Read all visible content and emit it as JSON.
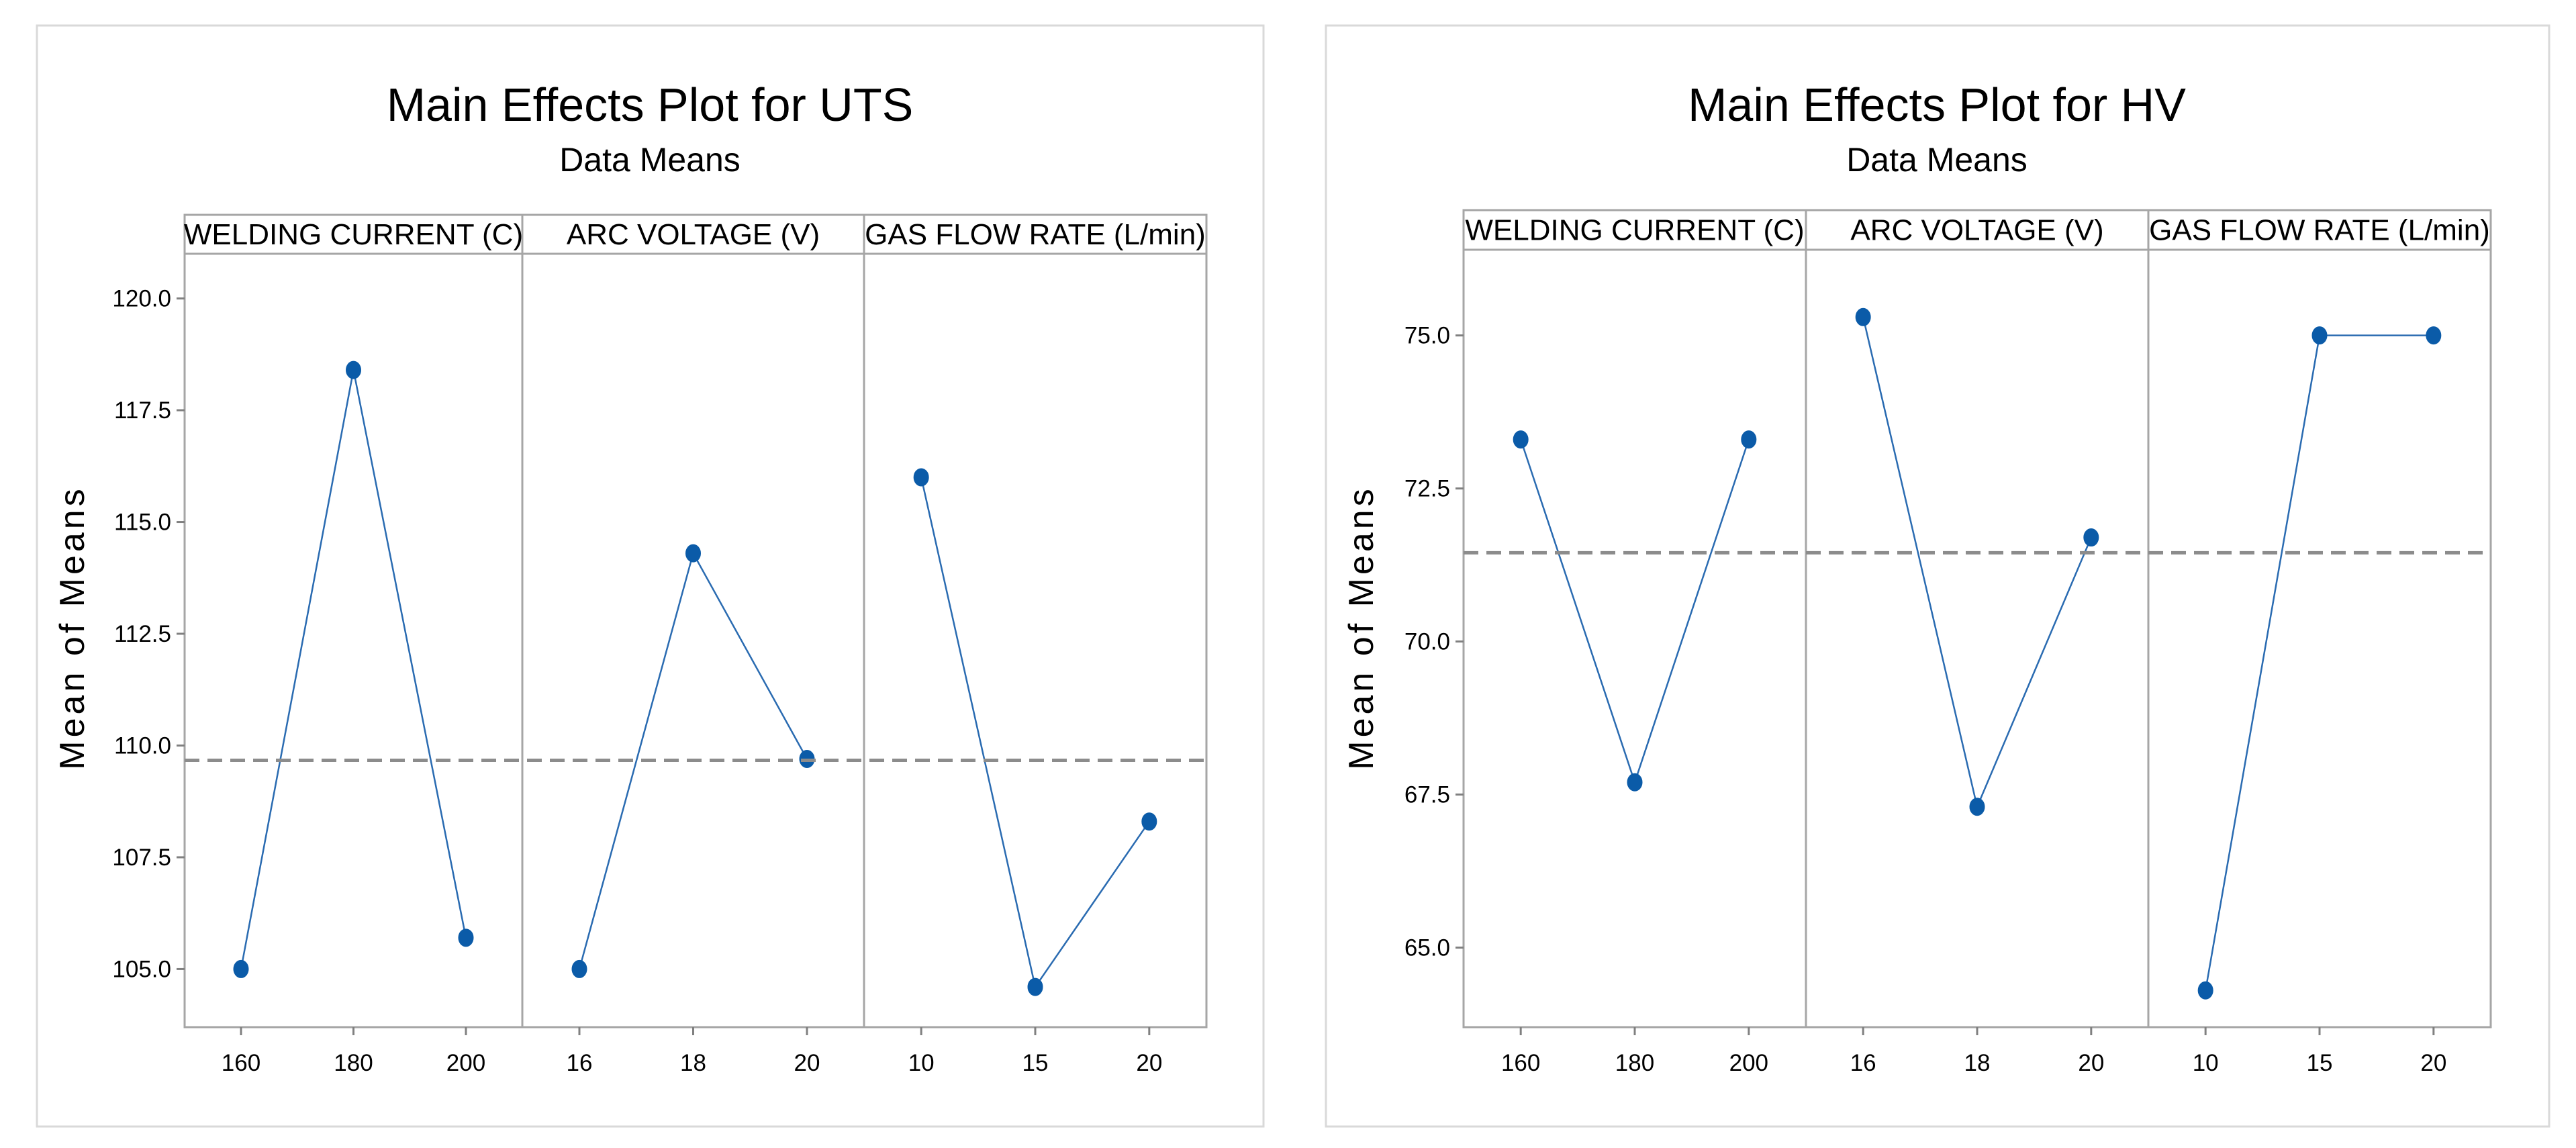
{
  "chart_data": [
    {
      "type": "line",
      "title": "Main Effects Plot for UTS",
      "subtitle": "Data Means",
      "ylabel": "Mean of Means",
      "ylim": [
        103.7,
        121.0
      ],
      "yticks": [
        105.0,
        107.5,
        110.0,
        112.5,
        115.0,
        117.5,
        120.0
      ],
      "ytick_labels": [
        "105.0",
        "107.5",
        "110.0",
        "112.5",
        "115.0",
        "117.5",
        "120.0"
      ],
      "reference_mean": 109.67,
      "grid": false,
      "panels": [
        {
          "factor": "WELDING CURRENT (C)",
          "levels": [
            "160",
            "180",
            "200"
          ],
          "values": [
            105.0,
            118.4,
            105.7
          ]
        },
        {
          "factor": "ARC VOLTAGE (V)",
          "levels": [
            "16",
            "18",
            "20"
          ],
          "values": [
            105.0,
            114.3,
            109.7
          ]
        },
        {
          "factor": "GAS FLOW RATE (L/min)",
          "levels": [
            "10",
            "15",
            "20"
          ],
          "values": [
            116.0,
            104.6,
            108.3
          ]
        }
      ]
    },
    {
      "type": "line",
      "title": "Main Effects Plot for HV",
      "subtitle": "Data Means",
      "ylabel": "Mean of Means",
      "ylim": [
        63.7,
        76.4
      ],
      "yticks": [
        65.0,
        67.5,
        70.0,
        72.5,
        75.0
      ],
      "ytick_labels": [
        "65.0",
        "67.5",
        "70.0",
        "72.5",
        "75.0"
      ],
      "reference_mean": 71.45,
      "grid": false,
      "panels": [
        {
          "factor": "WELDING CURRENT (C)",
          "levels": [
            "160",
            "180",
            "200"
          ],
          "values": [
            73.3,
            67.7,
            73.3
          ]
        },
        {
          "factor": "ARC VOLTAGE (V)",
          "levels": [
            "16",
            "18",
            "20"
          ],
          "values": [
            75.3,
            67.3,
            71.7
          ]
        },
        {
          "factor": "GAS FLOW RATE (L/min)",
          "levels": [
            "10",
            "15",
            "20"
          ],
          "values": [
            64.3,
            75.0,
            75.0
          ]
        }
      ]
    }
  ],
  "colors": {
    "series": "#2a6bb1",
    "point": "#0b5ba8",
    "reference": "#8c8c8c",
    "axis": "#a6a6a6"
  }
}
